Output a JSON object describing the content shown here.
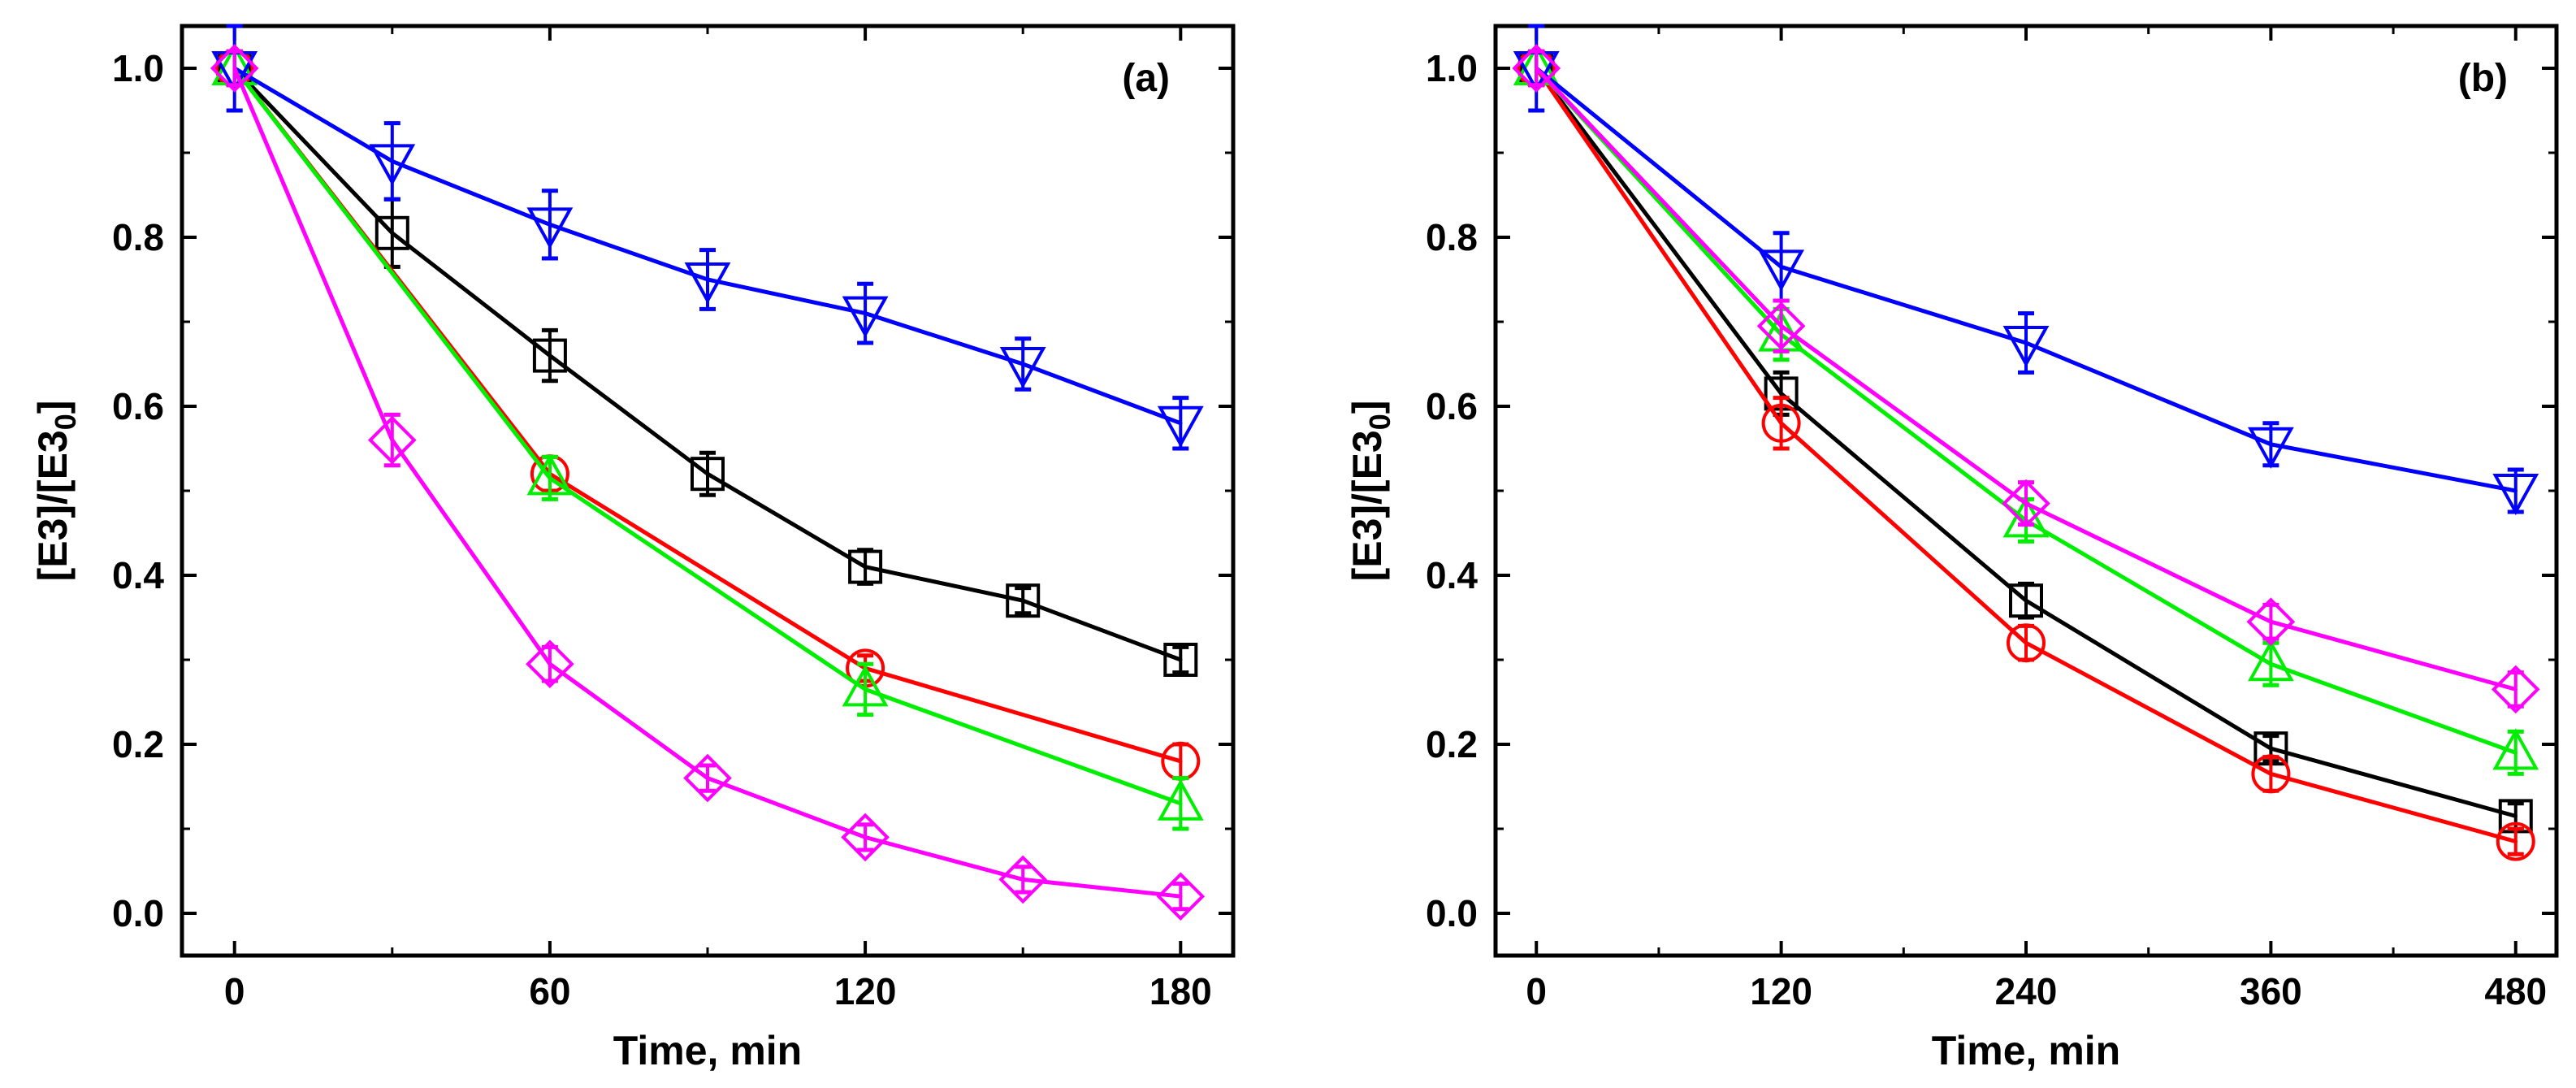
{
  "chart_data": [
    {
      "type": "line",
      "panel_label": "(a)",
      "xlabel": "Time, min",
      "ylabel": "[E3]/[E3",
      "ylabel_sub": "0",
      "ylabel_close": "]",
      "xlim": [
        -10,
        190
      ],
      "ylim": [
        -0.05,
        1.05
      ],
      "xticks": [
        0,
        60,
        120,
        180
      ],
      "xtick_labels": [
        "0",
        "60",
        "120",
        "180"
      ],
      "yticks": [
        0.0,
        0.2,
        0.4,
        0.6,
        0.8,
        1.0
      ],
      "ytick_labels": [
        "0.0",
        "0.2",
        "0.4",
        "0.6",
        "0.8",
        "1.0"
      ],
      "series": [
        {
          "marker": "square",
          "color": "#000000",
          "x": [
            0,
            30,
            60,
            90,
            120,
            150,
            180
          ],
          "y": [
            1.0,
            0.805,
            0.66,
            0.52,
            0.41,
            0.37,
            0.3
          ],
          "err": [
            0.02,
            0.04,
            0.03,
            0.025,
            0.02,
            0.015,
            0.015
          ]
        },
        {
          "marker": "circle",
          "color": "#ff0000",
          "x": [
            0,
            60,
            120,
            180
          ],
          "y": [
            1.0,
            0.52,
            0.29,
            0.18
          ],
          "err": [
            0.02,
            0.02,
            0.015,
            0.02
          ]
        },
        {
          "marker": "triangle-up",
          "color": "#00ee00",
          "x": [
            0,
            60,
            120,
            180
          ],
          "y": [
            1.0,
            0.515,
            0.265,
            0.13
          ],
          "err": [
            0.02,
            0.025,
            0.03,
            0.03
          ]
        },
        {
          "marker": "triangle-down",
          "color": "#0000ff",
          "x": [
            0,
            30,
            60,
            90,
            120,
            150,
            180
          ],
          "y": [
            1.0,
            0.89,
            0.815,
            0.75,
            0.71,
            0.65,
            0.58
          ],
          "err": [
            0.05,
            0.045,
            0.04,
            0.035,
            0.035,
            0.03,
            0.03
          ]
        },
        {
          "marker": "diamond",
          "color": "#ff00ff",
          "x": [
            0,
            30,
            60,
            90,
            120,
            150,
            180
          ],
          "y": [
            1.0,
            0.56,
            0.295,
            0.16,
            0.09,
            0.04,
            0.02
          ],
          "err": [
            0.02,
            0.03,
            0.02,
            0.015,
            0.015,
            0.015,
            0.015
          ]
        }
      ]
    },
    {
      "type": "line",
      "panel_label": "(b)",
      "xlabel": "Time, min",
      "ylabel": "[E3]/[E3",
      "ylabel_sub": "0",
      "ylabel_close": "]",
      "xlim": [
        -20,
        500
      ],
      "ylim": [
        -0.05,
        1.05
      ],
      "xticks": [
        0,
        120,
        240,
        360,
        480
      ],
      "xtick_labels": [
        "0",
        "120",
        "240",
        "360",
        "480"
      ],
      "yticks": [
        0.0,
        0.2,
        0.4,
        0.6,
        0.8,
        1.0
      ],
      "ytick_labels": [
        "0.0",
        "0.2",
        "0.4",
        "0.6",
        "0.8",
        "1.0"
      ],
      "series": [
        {
          "marker": "square",
          "color": "#000000",
          "x": [
            0,
            120,
            240,
            360,
            480
          ],
          "y": [
            1.0,
            0.615,
            0.37,
            0.195,
            0.115
          ],
          "err": [
            0.02,
            0.025,
            0.02,
            0.015,
            0.015
          ]
        },
        {
          "marker": "circle",
          "color": "#ff0000",
          "x": [
            0,
            120,
            240,
            360,
            480
          ],
          "y": [
            1.0,
            0.58,
            0.32,
            0.165,
            0.085
          ],
          "err": [
            0.02,
            0.03,
            0.02,
            0.02,
            0.015
          ]
        },
        {
          "marker": "triangle-up",
          "color": "#00ee00",
          "x": [
            0,
            120,
            240,
            360,
            480
          ],
          "y": [
            1.0,
            0.685,
            0.465,
            0.295,
            0.19
          ],
          "err": [
            0.02,
            0.03,
            0.025,
            0.025,
            0.025
          ]
        },
        {
          "marker": "triangle-down",
          "color": "#0000ff",
          "x": [
            0,
            120,
            240,
            360,
            480
          ],
          "y": [
            1.0,
            0.765,
            0.675,
            0.555,
            0.5
          ],
          "err": [
            0.05,
            0.04,
            0.035,
            0.025,
            0.025
          ]
        },
        {
          "marker": "diamond",
          "color": "#ff00ff",
          "x": [
            0,
            120,
            240,
            360,
            480
          ],
          "y": [
            1.0,
            0.695,
            0.485,
            0.345,
            0.265
          ],
          "err": [
            0.02,
            0.03,
            0.025,
            0.02,
            0.02
          ]
        }
      ]
    }
  ]
}
